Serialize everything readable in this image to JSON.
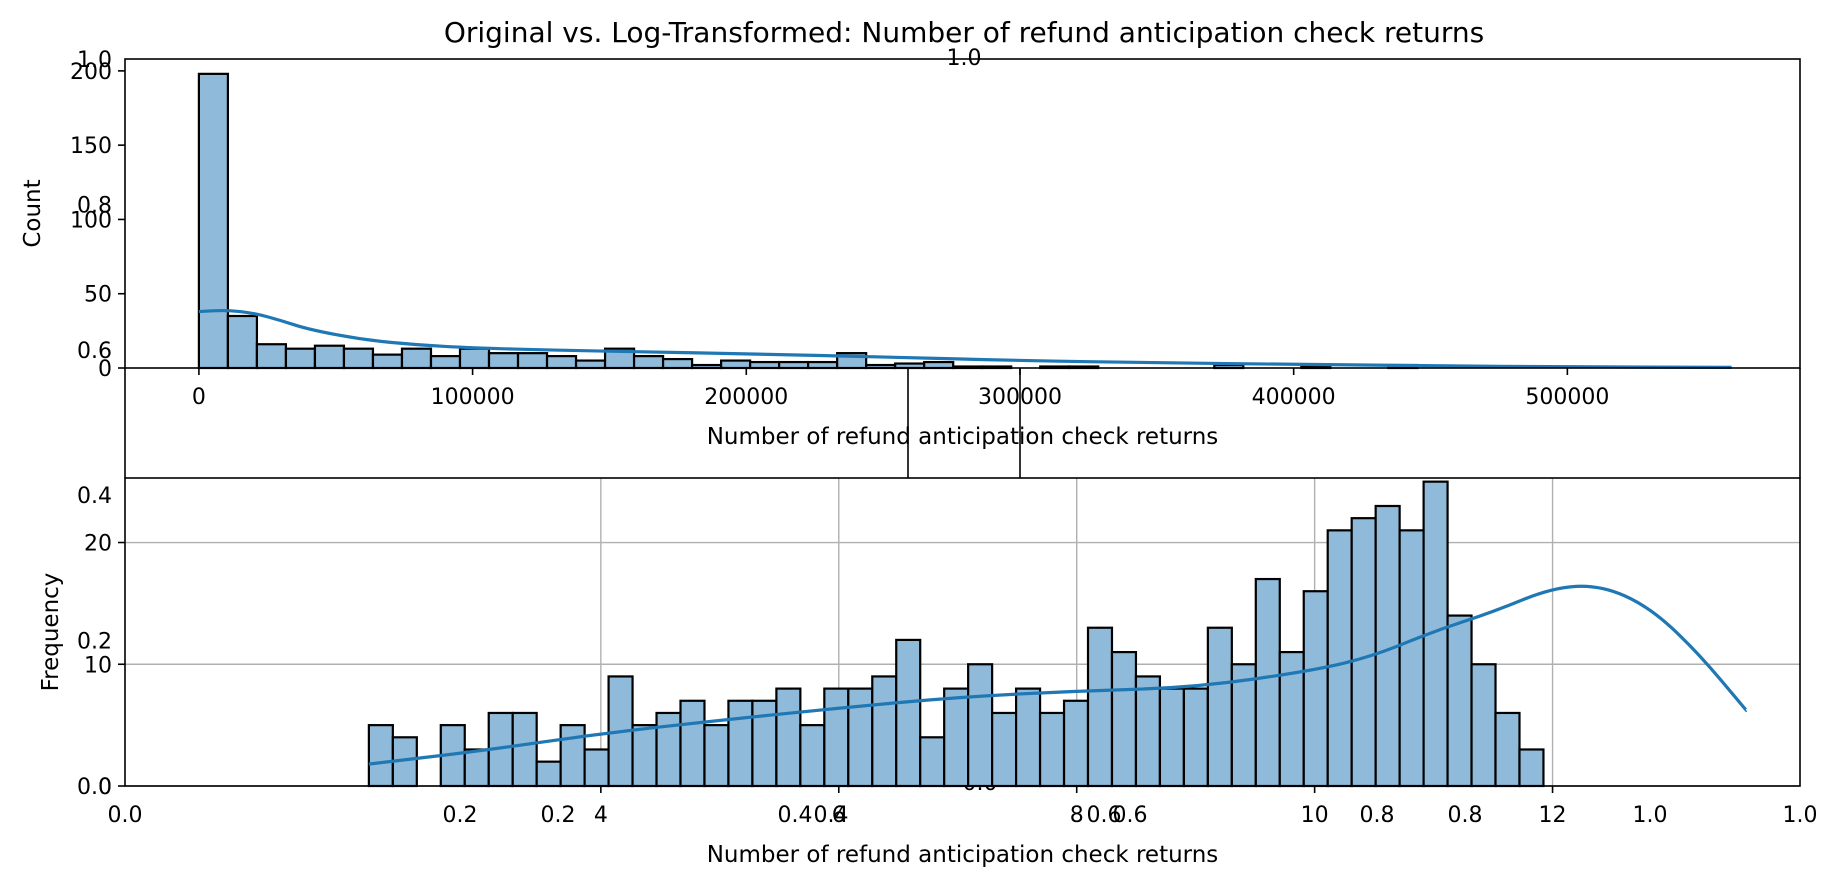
{
  "figure_title": "Original vs. Log-Transformed: Number of refund anticipation check returns",
  "colors": {
    "bar_fill": "#8fbad9",
    "kde_line": "#1f77b4",
    "grid": "#b0b0b0",
    "axes": "#000000"
  },
  "chart_data": [
    {
      "type": "bar",
      "subtype": "histogram_with_kde",
      "panel": "top",
      "title": "",
      "xlabel": "Number of refund anticipation check returns",
      "ylabel": "Count",
      "xlim": [
        -27000,
        585000
      ],
      "ylim": [
        0,
        208
      ],
      "grid": false,
      "xticks": [
        0,
        100000,
        200000,
        300000,
        400000,
        500000
      ],
      "xtick_labels": [
        "0",
        "100000",
        "200000",
        "300000",
        "400000",
        "500000"
      ],
      "yticks": [
        0,
        50,
        100,
        150,
        200
      ],
      "ytick_labels": [
        "0",
        "50",
        "100",
        "150",
        "200"
      ],
      "bin_start": 0,
      "bin_width": 10600,
      "values": [
        198,
        35,
        16,
        13,
        15,
        13,
        9,
        13,
        8,
        13,
        10,
        10,
        8,
        5,
        13,
        8,
        6,
        2,
        5,
        4,
        4,
        4,
        10,
        2,
        3,
        4,
        1,
        1,
        0,
        1,
        1,
        0,
        0,
        0,
        0,
        2,
        0,
        0,
        1,
        0,
        0,
        2,
        0,
        0,
        0,
        0,
        0,
        0,
        0,
        0,
        0,
        0,
        0
      ],
      "kde": {
        "x": [
          0,
          10000,
          20000,
          30000,
          40000,
          60000,
          80000,
          100000,
          130000,
          160000,
          200000,
          250000,
          300000,
          350000,
          400000,
          450000,
          500000,
          560000
        ],
        "y": [
          38,
          39,
          37,
          32,
          26,
          19,
          15.5,
          13.5,
          12,
          11,
          9.5,
          7.5,
          5,
          3.5,
          2.5,
          1.5,
          0.8,
          0.4
        ]
      }
    },
    {
      "type": "bar",
      "subtype": "histogram_with_kde",
      "panel": "bottom",
      "title": "",
      "xlabel": "Number of refund anticipation check returns",
      "ylabel": "Frequency",
      "xlim": [
        0,
        14.08
      ],
      "ylim": [
        0,
        25.3
      ],
      "grid": true,
      "xticks": [
        2,
        4,
        6,
        8,
        10,
        12
      ],
      "xtick_labels": [
        "4",
        "6",
        "8",
        "10",
        "12"
      ],
      "xtick_positions": [
        4,
        6,
        8,
        10,
        12
      ],
      "yticks": [
        0,
        10,
        20
      ],
      "ytick_labels": [
        "0",
        "10",
        "20"
      ],
      "bin_start": 2.05,
      "bin_width": 0.2015,
      "values": [
        5,
        4,
        0,
        5,
        3,
        6,
        6,
        2,
        5,
        3,
        9,
        5,
        6,
        7,
        5,
        7,
        7,
        8,
        5,
        8,
        8,
        9,
        12,
        4,
        8,
        10,
        6,
        8,
        6,
        7,
        13,
        11,
        9,
        8,
        8,
        13,
        10,
        17,
        11,
        16,
        21,
        22,
        23,
        21,
        25,
        14,
        10,
        6,
        3
      ],
      "kde": {
        "x": [
          2.05,
          3,
          4,
          5,
          6,
          7,
          8,
          9,
          10,
          10.5,
          11,
          11.5,
          12,
          12.4,
          12.8,
          13.2,
          13.63
        ],
        "y": [
          1.8,
          2.9,
          4.3,
          5.4,
          6.4,
          7.3,
          7.8,
          8.1,
          9.5,
          10.7,
          12.7,
          14.3,
          16.3,
          16.5,
          14.8,
          11.2,
          6.2
        ]
      }
    }
  ],
  "overlay_axes": {
    "x_tick_labels": [
      "0.0",
      "0.2",
      "0.4",
      "0.6",
      "0.8",
      "1.0"
    ],
    "x2_tick_labels": [
      "0.0",
      "0.2",
      "0.4",
      "0.6",
      "0.8",
      "1.0"
    ],
    "y_tick_labels": [
      "0.0",
      "0.2",
      "0.4",
      "0.6",
      "0.8",
      "1.0"
    ],
    "mid_y_label": "0.0",
    "top_x_label": "1.0"
  }
}
